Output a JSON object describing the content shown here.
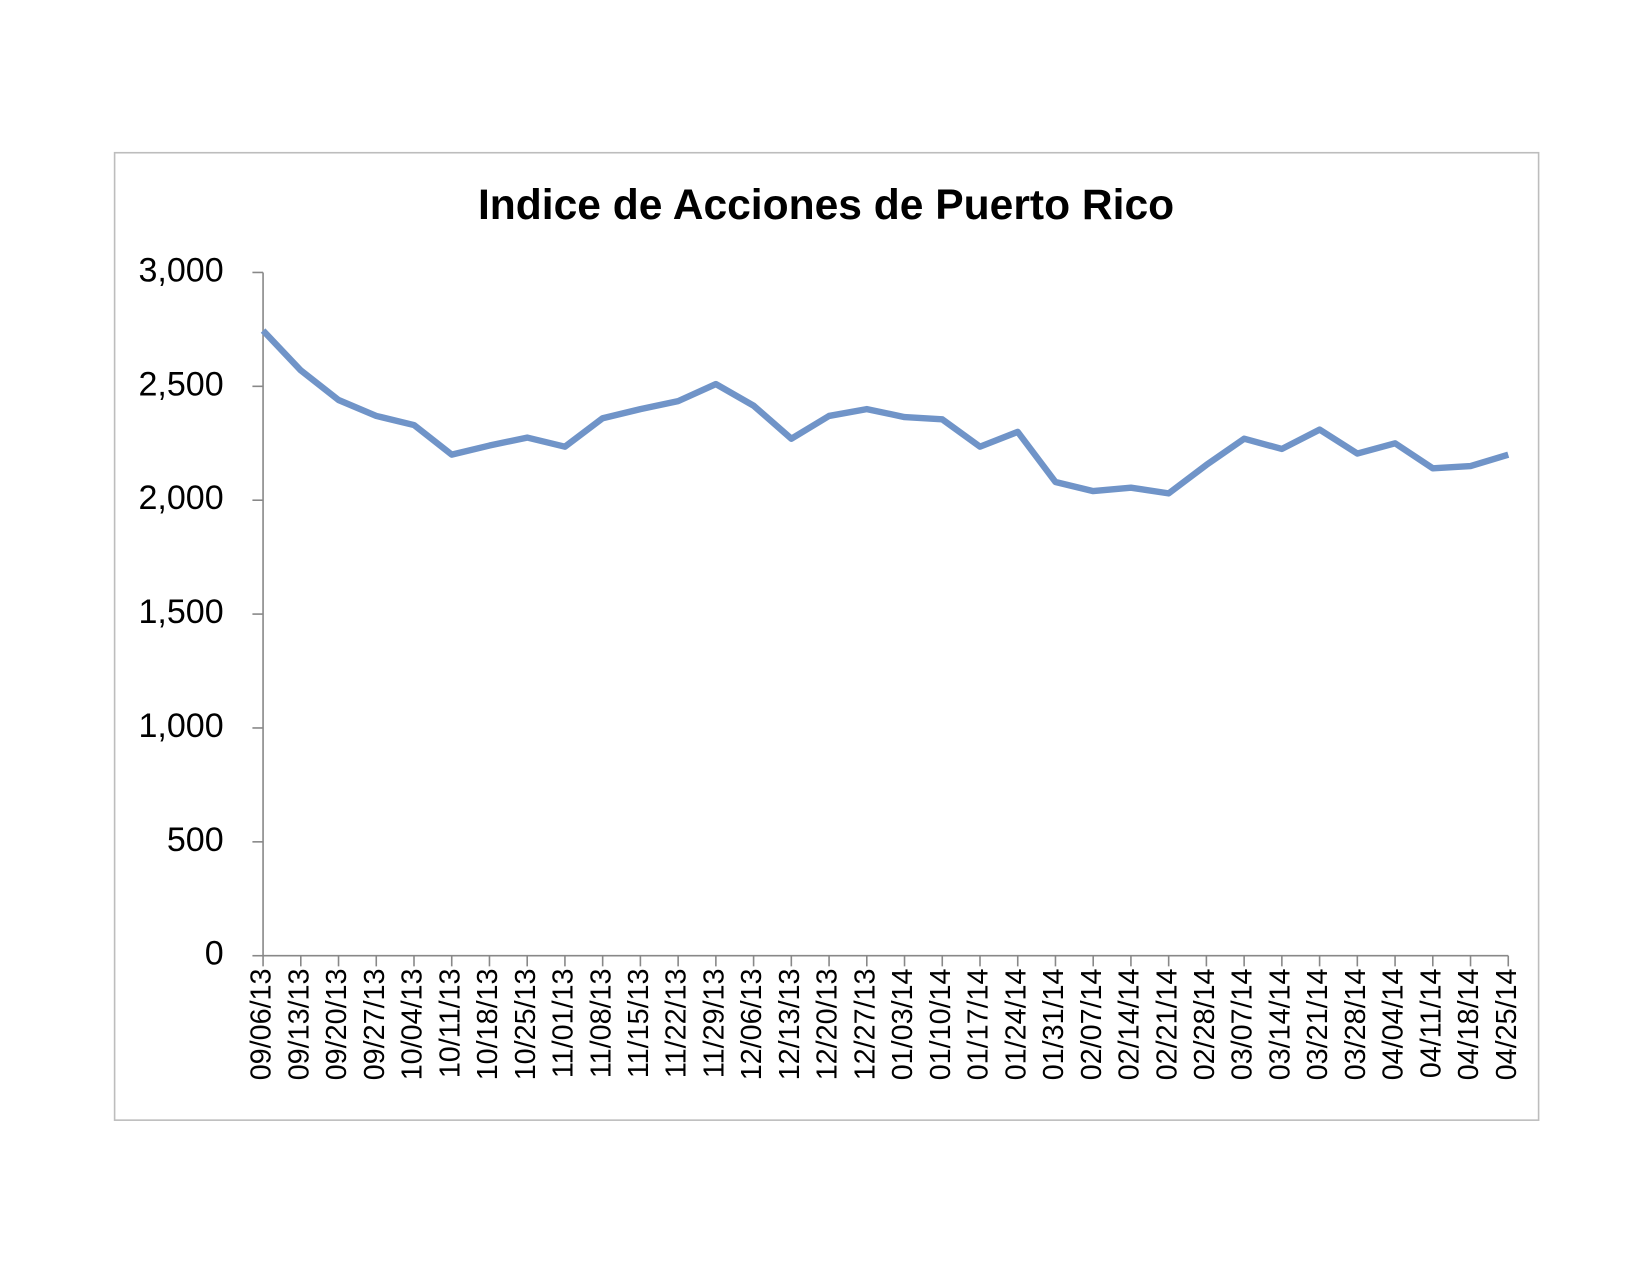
{
  "chart_data": {
    "type": "line",
    "title": "Indice de Acciones de Puerto Rico",
    "categories": [
      "09/06/13",
      "09/13/13",
      "09/20/13",
      "09/27/13",
      "10/04/13",
      "10/11/13",
      "10/18/13",
      "10/25/13",
      "11/01/13",
      "11/08/13",
      "11/15/13",
      "11/22/13",
      "11/29/13",
      "12/06/13",
      "12/13/13",
      "12/20/13",
      "12/27/13",
      "01/03/14",
      "01/10/14",
      "01/17/14",
      "01/24/14",
      "01/31/14",
      "02/07/14",
      "02/14/14",
      "02/21/14",
      "02/28/14",
      "03/07/14",
      "03/14/14",
      "03/21/14",
      "03/28/14",
      "04/04/14",
      "04/11/14",
      "04/18/14",
      "04/25/14"
    ],
    "values": [
      2745,
      2570,
      2440,
      2370,
      2330,
      2200,
      2240,
      2275,
      2235,
      2360,
      2400,
      2435,
      2510,
      2415,
      2270,
      2370,
      2400,
      2365,
      2355,
      2235,
      2300,
      2080,
      2040,
      2055,
      2030,
      2155,
      2270,
      2225,
      2310,
      2205,
      2250,
      2140,
      2150,
      2200
    ],
    "color": "#7094c8",
    "ylim": [
      0,
      3000
    ],
    "yticks": [
      0,
      500,
      {
        "value": 1000,
        "label": "1,000"
      },
      {
        "value": 1500,
        "label": "1,500"
      },
      {
        "value": 2000,
        "label": "2,000"
      },
      {
        "value": 2500,
        "label": "2,500"
      },
      {
        "value": 3000,
        "label": "3,000"
      }
    ],
    "grid": false
  }
}
